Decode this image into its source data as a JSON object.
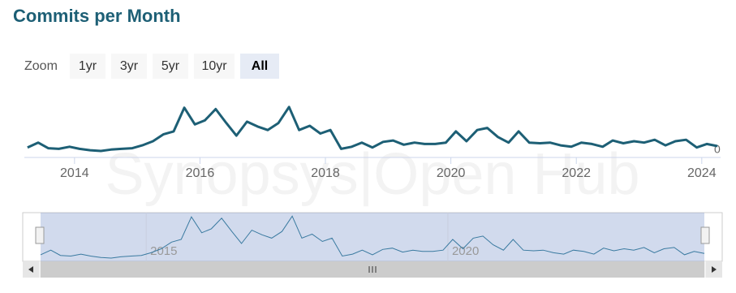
{
  "chart_data": {
    "type": "line",
    "title": "Commits per Month",
    "zoom_label": "Zoom",
    "zoom_buttons": [
      "1yr",
      "3yr",
      "5yr",
      "10yr",
      "All"
    ],
    "selected_zoom": 4,
    "watermark": "Synopsys|Open Hub",
    "color": "#1d5f75",
    "x": [
      2013.25,
      2013.42,
      2013.58,
      2013.75,
      2013.92,
      2014.08,
      2014.25,
      2014.42,
      2014.58,
      2014.75,
      2014.92,
      2015.08,
      2015.25,
      2015.42,
      2015.58,
      2015.75,
      2015.92,
      2016.08,
      2016.25,
      2016.42,
      2016.58,
      2016.75,
      2016.92,
      2017.08,
      2017.25,
      2017.42,
      2017.58,
      2017.75,
      2017.92,
      2018.08,
      2018.25,
      2018.42,
      2018.58,
      2018.75,
      2018.92,
      2019.08,
      2019.25,
      2019.42,
      2019.58,
      2019.75,
      2019.92,
      2020.08,
      2020.25,
      2020.42,
      2020.58,
      2020.75,
      2020.92,
      2021.08,
      2021.25,
      2021.42,
      2021.58,
      2021.75,
      2021.92,
      2022.08,
      2022.25,
      2022.42,
      2022.58,
      2022.75,
      2022.92,
      2023.08,
      2023.25,
      2023.42,
      2023.58,
      2023.75,
      2023.92,
      2024.08,
      2024.25
    ],
    "values": [
      5,
      12,
      4,
      3,
      6,
      3,
      1,
      0,
      2,
      3,
      4,
      8,
      14,
      24,
      28,
      62,
      38,
      44,
      60,
      40,
      22,
      42,
      35,
      30,
      40,
      63,
      30,
      36,
      25,
      30,
      3,
      6,
      12,
      5,
      13,
      15,
      9,
      12,
      10,
      10,
      12,
      28,
      14,
      30,
      33,
      20,
      12,
      28,
      12,
      11,
      12,
      8,
      6,
      12,
      10,
      6,
      15,
      11,
      14,
      12,
      16,
      8,
      14,
      16,
      5,
      10,
      7
    ],
    "xlim": [
      2013.2,
      2024.3
    ],
    "xticks": [
      2014,
      2016,
      2018,
      2020,
      2022,
      2024
    ],
    "ylim": [
      0,
      100
    ],
    "yticks": [
      0
    ],
    "navigator": {
      "xticks": [
        2015,
        2020
      ]
    }
  }
}
